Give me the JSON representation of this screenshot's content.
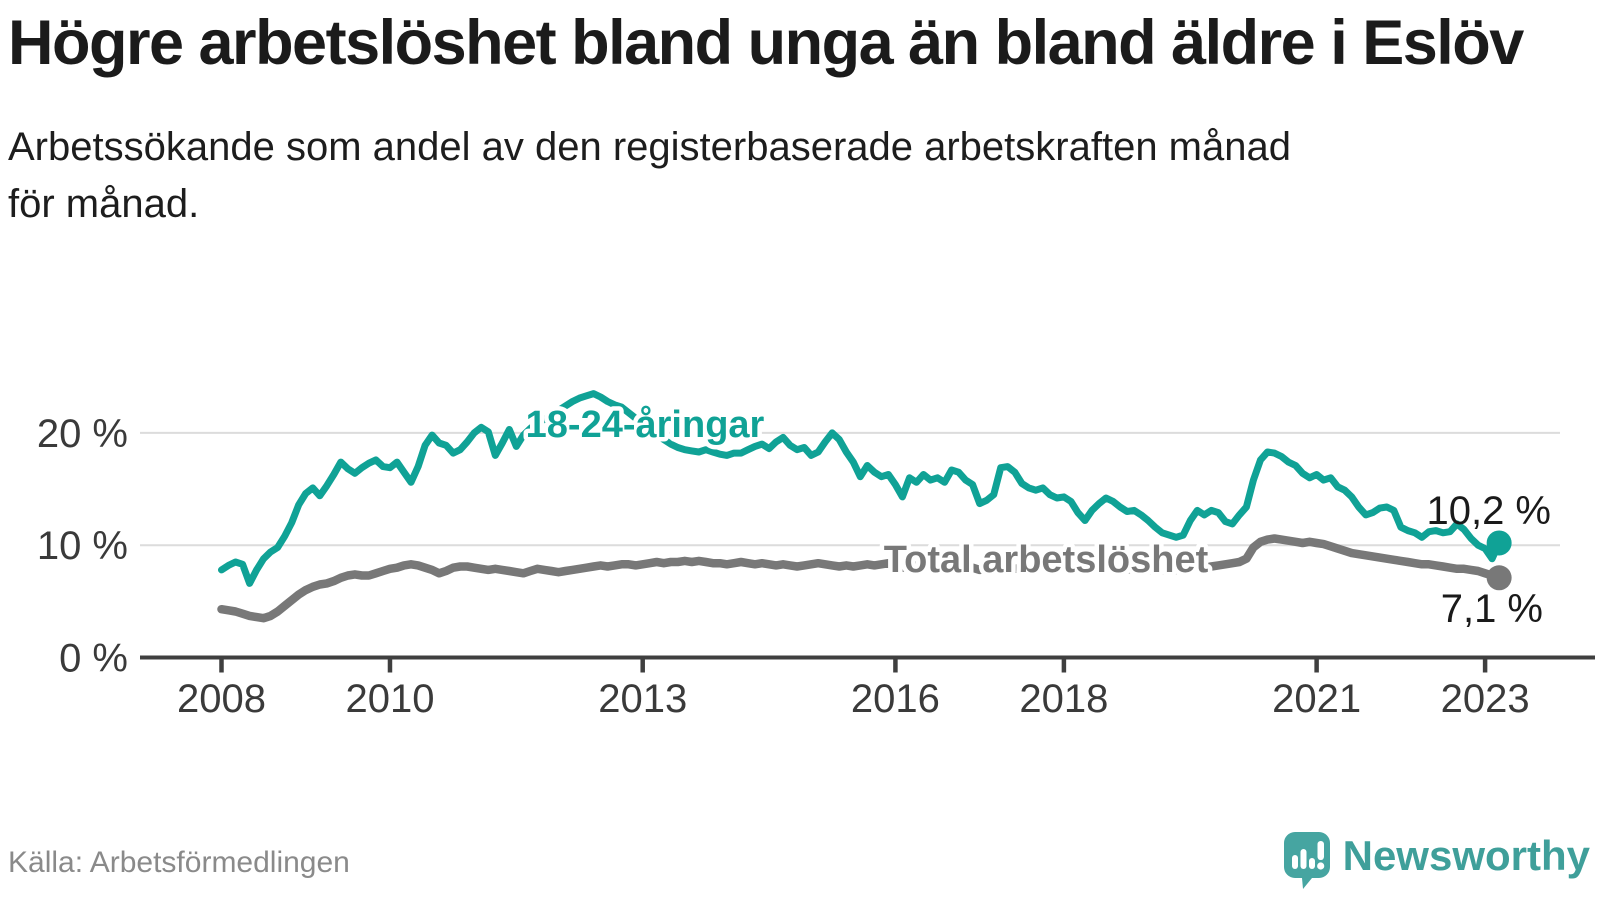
{
  "header": {
    "title": "Högre arbetslöshet bland unga än bland äldre i Eslöv",
    "subtitle": "Arbetssökande som andel av den registerbaserade arbetskraften månad för månad."
  },
  "footer": {
    "source": "Källa: Arbetsförmedlingen",
    "brand": "Newsworthy"
  },
  "chart_data": {
    "type": "line",
    "title": "Högre arbetslöshet bland unga än bland äldre i Eslöv",
    "unit": "percent",
    "frequency": "monthly",
    "x_start": "2008-01",
    "x_end": "2023-03",
    "ylim": [
      0,
      24
    ],
    "grid": "horizontal",
    "legend_position": "inline-labels",
    "y_ticks": [
      {
        "value": 0,
        "label": "0 %"
      },
      {
        "value": 10,
        "label": "10 %"
      },
      {
        "value": 20,
        "label": "20 %"
      }
    ],
    "x_ticks": [
      2008,
      2010,
      2013,
      2016,
      2018,
      2021,
      2023
    ],
    "series": [
      {
        "key": "youth",
        "name": "18-24-åringar",
        "color": "#10a296",
        "end_label": "10,2 %",
        "end_value": 10.2,
        "values": [
          7.8,
          8.2,
          8.5,
          8.3,
          6.6,
          7.8,
          8.8,
          9.4,
          9.8,
          10.8,
          12.0,
          13.6,
          14.6,
          15.1,
          14.4,
          15.3,
          16.3,
          17.4,
          16.8,
          16.4,
          16.9,
          17.3,
          17.6,
          17.0,
          16.9,
          17.4,
          16.5,
          15.6,
          17.0,
          18.9,
          19.8,
          19.1,
          18.9,
          18.2,
          18.5,
          19.2,
          20.0,
          20.5,
          20.1,
          18.0,
          19.1,
          20.3,
          18.8,
          19.8,
          20.4,
          20.9,
          21.2,
          21.6,
          22.0,
          22.4,
          22.8,
          23.1,
          23.3,
          23.5,
          23.2,
          22.8,
          22.5,
          22.3,
          21.8,
          21.3,
          20.8,
          20.3,
          19.8,
          19.4,
          19.0,
          18.7,
          18.5,
          18.4,
          18.3,
          18.5,
          18.3,
          18.1,
          18.0,
          18.2,
          18.2,
          18.5,
          18.8,
          19.0,
          18.6,
          19.2,
          19.6,
          18.9,
          18.5,
          18.7,
          18.0,
          18.3,
          19.2,
          20.0,
          19.4,
          18.3,
          17.4,
          16.1,
          17.1,
          16.5,
          16.1,
          16.3,
          15.4,
          14.3,
          16.0,
          15.6,
          16.3,
          15.8,
          16.0,
          15.6,
          16.7,
          16.5,
          15.8,
          15.4,
          13.7,
          14.0,
          14.5,
          16.9,
          17.0,
          16.5,
          15.5,
          15.1,
          14.9,
          15.1,
          14.5,
          14.2,
          14.3,
          13.9,
          12.9,
          12.2,
          13.1,
          13.7,
          14.2,
          13.9,
          13.4,
          13.0,
          13.1,
          12.7,
          12.2,
          11.6,
          11.1,
          10.9,
          10.7,
          10.9,
          12.2,
          13.1,
          12.7,
          13.1,
          12.9,
          12.1,
          11.9,
          12.7,
          13.4,
          15.8,
          17.6,
          18.3,
          18.2,
          17.9,
          17.4,
          17.1,
          16.4,
          16.0,
          16.3,
          15.8,
          16.0,
          15.2,
          14.9,
          14.3,
          13.4,
          12.7,
          12.9,
          13.3,
          13.4,
          13.1,
          11.6,
          11.3,
          11.1,
          10.7,
          11.2,
          11.3,
          11.1,
          11.2,
          11.9,
          11.4,
          10.6,
          10.0,
          9.7,
          8.8,
          10.2
        ]
      },
      {
        "key": "total",
        "name": "Total arbetslöshet",
        "color": "#787878",
        "end_label": "7,1 %",
        "end_value": 7.1,
        "values": [
          4.3,
          4.2,
          4.1,
          3.9,
          3.7,
          3.6,
          3.5,
          3.7,
          4.1,
          4.6,
          5.1,
          5.6,
          6.0,
          6.3,
          6.5,
          6.6,
          6.8,
          7.1,
          7.3,
          7.4,
          7.3,
          7.3,
          7.5,
          7.7,
          7.9,
          8.0,
          8.2,
          8.3,
          8.2,
          8.0,
          7.8,
          7.5,
          7.7,
          8.0,
          8.1,
          8.1,
          8.0,
          7.9,
          7.8,
          7.9,
          7.8,
          7.7,
          7.6,
          7.5,
          7.7,
          7.9,
          7.8,
          7.7,
          7.6,
          7.7,
          7.8,
          7.9,
          8.0,
          8.1,
          8.2,
          8.1,
          8.2,
          8.3,
          8.3,
          8.2,
          8.3,
          8.4,
          8.5,
          8.4,
          8.5,
          8.5,
          8.6,
          8.5,
          8.6,
          8.5,
          8.4,
          8.4,
          8.3,
          8.4,
          8.5,
          8.4,
          8.3,
          8.4,
          8.3,
          8.2,
          8.3,
          8.2,
          8.1,
          8.2,
          8.3,
          8.4,
          8.3,
          8.2,
          8.1,
          8.2,
          8.1,
          8.2,
          8.3,
          8.2,
          8.3,
          8.4,
          8.2,
          8.0,
          8.1,
          8.2,
          8.1,
          8.2,
          8.4,
          8.5,
          8.4,
          8.3,
          8.2,
          8.0,
          7.8,
          7.9,
          8.0,
          8.1,
          8.0,
          7.9,
          8.0,
          8.1,
          8.2,
          8.1,
          8.0,
          8.1,
          8.0,
          7.9,
          7.8,
          7.9,
          8.0,
          8.1,
          8.0,
          7.9,
          8.0,
          7.9,
          7.8,
          7.9,
          7.8,
          7.7,
          7.8,
          7.7,
          7.8,
          7.9,
          8.0,
          8.1,
          8.0,
          8.1,
          8.2,
          8.3,
          8.4,
          8.5,
          8.8,
          9.8,
          10.3,
          10.5,
          10.6,
          10.5,
          10.4,
          10.3,
          10.2,
          10.3,
          10.2,
          10.1,
          9.9,
          9.7,
          9.5,
          9.3,
          9.2,
          9.1,
          9.0,
          8.9,
          8.8,
          8.7,
          8.6,
          8.5,
          8.4,
          8.3,
          8.3,
          8.2,
          8.1,
          8.0,
          7.9,
          7.9,
          7.8,
          7.7,
          7.5,
          7.3,
          7.1
        ]
      }
    ]
  }
}
